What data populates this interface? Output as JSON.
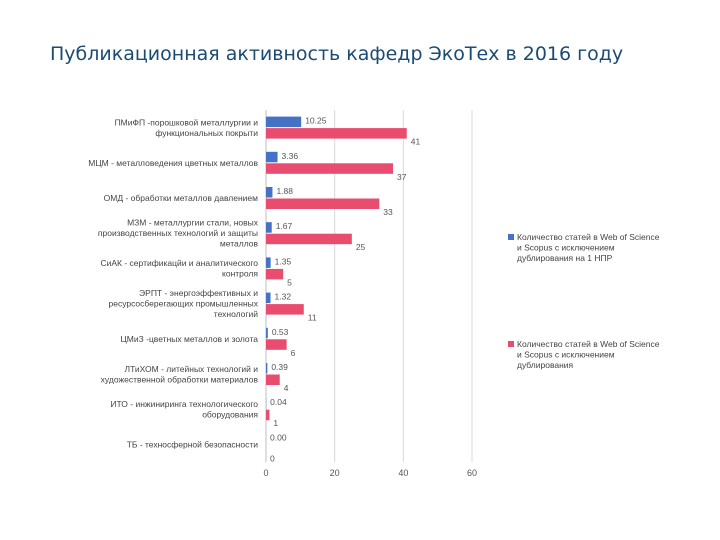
{
  "chart_data": {
    "type": "bar",
    "orientation": "horizontal",
    "title": "Публикационная активность кафедр ЭкоТех в 2016 году",
    "categories": [
      [
        "ПМиФП -порошковой металлургии и",
        "функциональных покрыти"
      ],
      [
        "МЦМ - металловедения цветных металлов"
      ],
      [
        "ОМД - обработки металлов давлением"
      ],
      [
        "МЗМ - металлургии стали, новых",
        "производственных технологий и защиты",
        "металлов"
      ],
      [
        "СиАК - сертификацйи и аналитического",
        "контроля"
      ],
      [
        "ЭРПТ - энергоэффективных и",
        "ресурсосберегающих промышленных",
        "технологий"
      ],
      [
        "ЦМиЗ -цветных металлов и золота"
      ],
      [
        "ЛТиХОМ - литейных технологий и",
        "художественной обработки материалов"
      ],
      [
        "ИТО - инжиниринга технологического",
        "оборудования"
      ],
      [
        "ТБ - техносферной безопасности"
      ]
    ],
    "series": [
      {
        "name": [
          "Количество статей в Web of Science",
          "и Scopus с исключением",
          "дублирования на 1 НПР"
        ],
        "color": "#4472c4",
        "values": [
          10.25,
          3.36,
          1.88,
          1.67,
          1.35,
          1.32,
          0.53,
          0.39,
          0.04,
          0.0
        ],
        "labels": [
          "10.25",
          "3.36",
          "1.88",
          "1.67",
          "1.35",
          "1.32",
          "0.53",
          "0.39",
          "0.04",
          "0.00"
        ]
      },
      {
        "name": [
          "Количество статей в Web of Science",
          "и Scopus с исключением",
          "дублирования"
        ],
        "color": "#e84c6e",
        "values": [
          41,
          37,
          33,
          25,
          5,
          11,
          6,
          4,
          1,
          0
        ],
        "labels": [
          "41",
          "37",
          "33",
          "25",
          "5",
          "11",
          "6",
          "4",
          "1",
          "0"
        ]
      }
    ],
    "xlim": [
      0,
      60
    ],
    "xticks": [
      "0",
      "20",
      "40",
      "60"
    ],
    "grid": true,
    "legend_position": "right"
  }
}
